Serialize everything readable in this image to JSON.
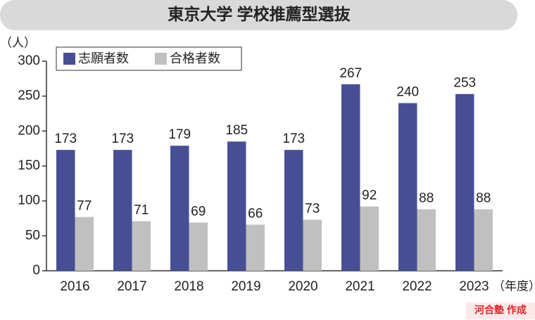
{
  "chart_data": {
    "type": "bar",
    "title": "東京大学 学校推薦型選抜",
    "y_unit": "（人）",
    "x_unit": "（年度）",
    "source": "河合塾 作成",
    "categories": [
      "2016",
      "2017",
      "2018",
      "2019",
      "2020",
      "2021",
      "2022",
      "2023"
    ],
    "series": [
      {
        "name": "志願者数",
        "color": "#474f94",
        "values": [
          173,
          173,
          179,
          185,
          173,
          267,
          240,
          253
        ]
      },
      {
        "name": "合格者数",
        "color": "#c0c0c0",
        "values": [
          77,
          71,
          69,
          66,
          73,
          92,
          88,
          88
        ]
      }
    ],
    "ylim": [
      0,
      300
    ],
    "yticks": [
      0,
      50,
      100,
      150,
      200,
      250,
      300
    ],
    "legend": "upper left",
    "grid": false
  }
}
